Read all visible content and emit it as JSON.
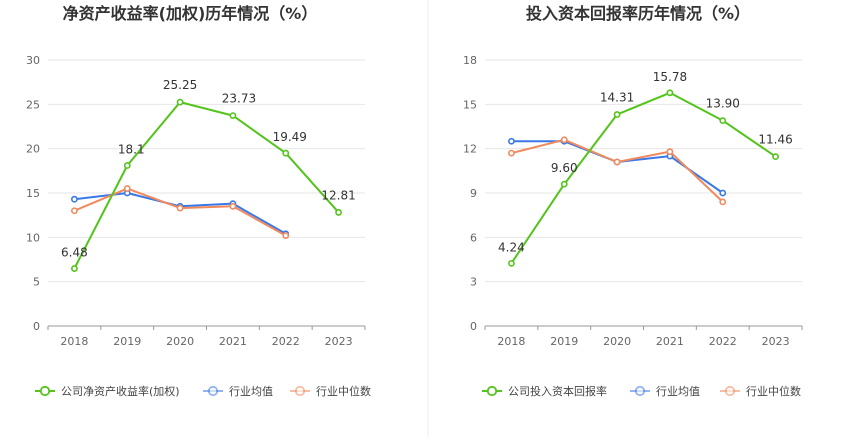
{
  "chart_data": [
    {
      "type": "line",
      "title": "净资产收益率(加权)历年情况（%）",
      "categories": [
        "2018",
        "2019",
        "2020",
        "2021",
        "2022",
        "2023"
      ],
      "ylim": [
        0,
        30
      ],
      "yticks": [
        "0",
        "5",
        "10",
        "15",
        "20",
        "25",
        "30"
      ],
      "grid": true,
      "legend_position": "bottom-left",
      "series": [
        {
          "name": "公司净资产收益率(加权)",
          "color": "#52c41a",
          "values": [
            6.48,
            18.1,
            25.25,
            23.73,
            19.49,
            12.81
          ],
          "labels": [
            "6.48",
            "18.1",
            "25.25",
            "23.73",
            "19.49",
            "12.81"
          ]
        },
        {
          "name": "行业均值",
          "color": "#3b78e7",
          "values": [
            14.3,
            15.0,
            13.5,
            13.8,
            10.4,
            null
          ]
        },
        {
          "name": "行业中位数",
          "color": "#f08a5d",
          "values": [
            13.0,
            15.5,
            13.3,
            13.5,
            10.2,
            null
          ]
        }
      ]
    },
    {
      "type": "line",
      "title": "投入资本回报率历年情况（%）",
      "categories": [
        "2018",
        "2019",
        "2020",
        "2021",
        "2022",
        "2023"
      ],
      "ylim": [
        0,
        18
      ],
      "yticks": [
        "0",
        "3",
        "6",
        "9",
        "12",
        "15",
        "18"
      ],
      "grid": true,
      "legend_position": "bottom-left",
      "series": [
        {
          "name": "公司投入资本回报率",
          "color": "#52c41a",
          "values": [
            4.24,
            9.6,
            14.31,
            15.78,
            13.9,
            11.46
          ],
          "labels": [
            "4.24",
            "9.60",
            "14.31",
            "15.78",
            "13.90",
            "11.46"
          ]
        },
        {
          "name": "行业均值",
          "color": "#3b78e7",
          "values": [
            12.5,
            12.5,
            11.1,
            11.5,
            9.0,
            null
          ]
        },
        {
          "name": "行业中位数",
          "color": "#f08a5d",
          "values": [
            11.7,
            12.6,
            11.1,
            11.8,
            8.4,
            null
          ]
        }
      ]
    }
  ]
}
